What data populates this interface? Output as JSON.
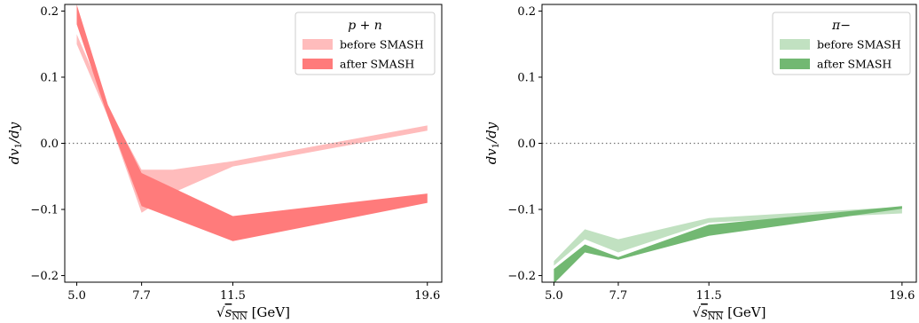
{
  "chart_data": [
    {
      "type": "area",
      "xlabel": "√sNN [GeV]",
      "ylabel": "dv1/dy",
      "x_ticks": [
        5.0,
        7.7,
        11.5,
        19.6
      ],
      "x_tick_labels": [
        "5.0",
        "7.7",
        "11.5",
        "19.6"
      ],
      "y_ticks": [
        -0.2,
        -0.1,
        0.0,
        0.1,
        0.2
      ],
      "y_tick_labels": [
        "−0.2",
        "−0.1",
        "0.0",
        "0.1",
        "0.2"
      ],
      "xlim": [
        4.5,
        20.2
      ],
      "ylim": [
        -0.21,
        0.21
      ],
      "reference_line": 0.0,
      "legend": {
        "title": "p + n",
        "placement": "top-right"
      },
      "series": [
        {
          "name": "before SMASH",
          "color": "#ffbcbc",
          "x": [
            5.0,
            6.3,
            7.7,
            9.0,
            11.5,
            19.6
          ],
          "lower": [
            0.15,
            0.04,
            -0.105,
            -0.075,
            -0.035,
            0.019
          ],
          "upper": [
            0.165,
            0.055,
            -0.04,
            -0.04,
            -0.027,
            0.027
          ]
        },
        {
          "name": "after SMASH",
          "color": "#ff7b7b",
          "x": [
            5.0,
            6.3,
            7.7,
            11.5,
            19.6
          ],
          "lower": [
            0.18,
            0.04,
            -0.095,
            -0.148,
            -0.09
          ],
          "upper": [
            0.21,
            0.058,
            -0.045,
            -0.11,
            -0.076
          ]
        }
      ]
    },
    {
      "type": "area",
      "xlabel": "√sNN [GeV]",
      "ylabel": "dv1/dy",
      "x_ticks": [
        5.0,
        7.7,
        11.5,
        19.6
      ],
      "x_tick_labels": [
        "5.0",
        "7.7",
        "11.5",
        "19.6"
      ],
      "y_ticks": [
        -0.2,
        -0.1,
        0.0,
        0.1,
        0.2
      ],
      "y_tick_labels": [
        "−0.2",
        "−0.1",
        "0.0",
        "0.1",
        "0.2"
      ],
      "xlim": [
        4.5,
        20.2
      ],
      "ylim": [
        -0.21,
        0.21
      ],
      "reference_line": 0.0,
      "legend": {
        "title": "π−",
        "placement": "top-right"
      },
      "series": [
        {
          "name": "before SMASH",
          "color": "#c1e1c1",
          "x": [
            5.0,
            6.3,
            7.7,
            11.5,
            19.6
          ],
          "lower": [
            -0.185,
            -0.145,
            -0.165,
            -0.12,
            -0.106
          ],
          "upper": [
            -0.178,
            -0.13,
            -0.145,
            -0.113,
            -0.096
          ]
        },
        {
          "name": "after SMASH",
          "color": "#72b872",
          "x": [
            5.0,
            6.3,
            7.7,
            11.5,
            19.6
          ],
          "lower": [
            -0.212,
            -0.165,
            -0.176,
            -0.14,
            -0.099
          ],
          "upper": [
            -0.19,
            -0.153,
            -0.172,
            -0.123,
            -0.095
          ]
        }
      ]
    }
  ]
}
